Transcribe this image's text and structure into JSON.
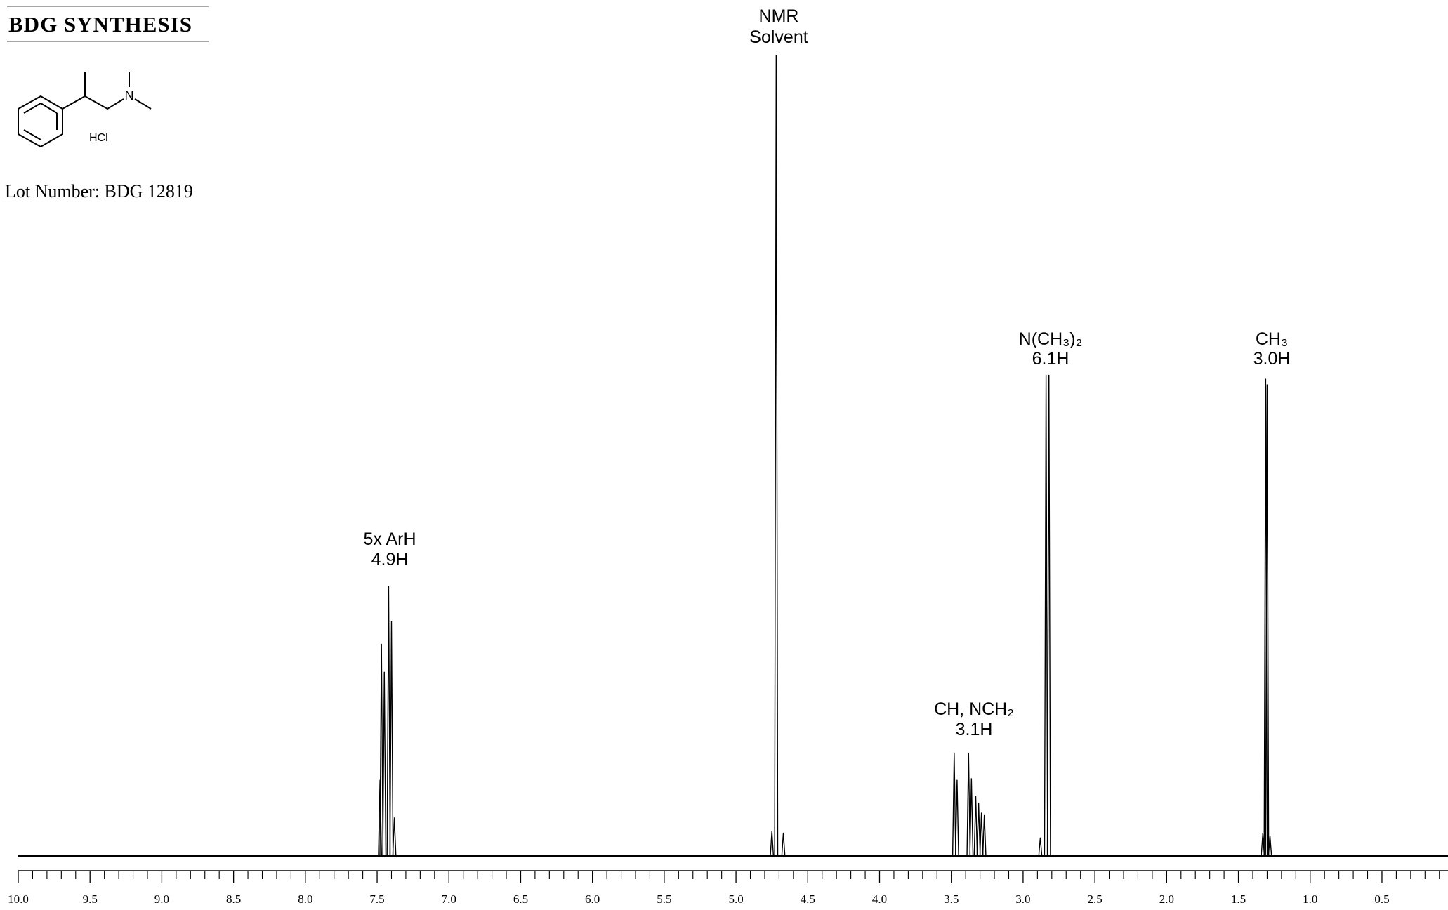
{
  "header": {
    "title": "BDG SYNTHESIS",
    "lot": "Lot Number: BDG 12819",
    "salt": "HCl",
    "atom": "N"
  },
  "chart_data": {
    "type": "spectrum",
    "annotations": [
      [
        "NMR",
        "Solvent"
      ],
      [
        "5x ArH",
        "4.9H"
      ],
      [
        "CH, NCH₂",
        "3.1H"
      ],
      [
        "N(CH₃)₂",
        "6.1H"
      ],
      [
        "CH₃",
        "3.0H"
      ]
    ],
    "x": [
      7.48,
      7.47,
      7.45,
      7.42,
      7.4,
      7.38,
      4.75,
      4.72,
      4.67,
      3.48,
      3.46,
      3.38,
      3.36,
      3.33,
      3.31,
      3.29,
      3.27,
      2.88,
      2.84,
      2.82,
      1.33,
      1.31,
      1.3,
      1.28
    ],
    "values": [
      9.5,
      26.5,
      23,
      33.7,
      29.3,
      4.8,
      3.1,
      100,
      2.9,
      12.9,
      9.5,
      12.9,
      9.7,
      7.5,
      6.6,
      5.4,
      5.2,
      2.3,
      60.1,
      60.1,
      2.8,
      59.6,
      58.9,
      2.5
    ],
    "color": "#000000",
    "xlim": [
      10.0,
      0.04
    ],
    "ylim": [
      0,
      100
    ],
    "xticks": [
      {
        "value": 10.0,
        "label": "10.0"
      },
      9.5,
      {
        "value": 9.0,
        "label": "9.0"
      },
      8.5,
      {
        "value": 8.0,
        "label": "8.0"
      },
      7.5,
      {
        "value": 7.0,
        "label": "7.0"
      },
      6.5,
      {
        "value": 6.0,
        "label": "6.0"
      },
      5.5,
      {
        "value": 5.0,
        "label": "5.0"
      },
      4.5,
      {
        "value": 4.0,
        "label": "4.0"
      },
      3.5,
      {
        "value": 3.0,
        "label": "3.0"
      },
      2.5,
      {
        "value": 2.0,
        "label": "2.0"
      },
      1.5,
      {
        "value": 1.0,
        "label": "1.0"
      },
      0.5
    ],
    "xminorticks": [
      9.9,
      9.8,
      9.7,
      9.6,
      9.4,
      9.3,
      9.2,
      9.1,
      8.9,
      8.8,
      8.7,
      8.6,
      8.4,
      8.3,
      8.2,
      8.1,
      7.9,
      7.8,
      7.7,
      7.6,
      7.4,
      7.3,
      7.2,
      7.1,
      6.9,
      6.8,
      6.7,
      6.6,
      6.4,
      6.3,
      6.2,
      6.1,
      5.9,
      5.8,
      5.7,
      5.6,
      5.4,
      5.3,
      5.2,
      5.1,
      4.9,
      4.8,
      4.7,
      4.6,
      4.4,
      4.3,
      4.2,
      4.1,
      3.9,
      3.8,
      3.7,
      3.6,
      3.4,
      3.3,
      3.2,
      3.1,
      2.9,
      2.8,
      2.7,
      2.6,
      2.4,
      2.3,
      2.2,
      2.1,
      1.9,
      1.8,
      1.7,
      1.6,
      1.4,
      1.3,
      1.2,
      1.1,
      0.9,
      0.8,
      0.7,
      0.6,
      0.4,
      0.3,
      0.2,
      0.1
    ]
  }
}
